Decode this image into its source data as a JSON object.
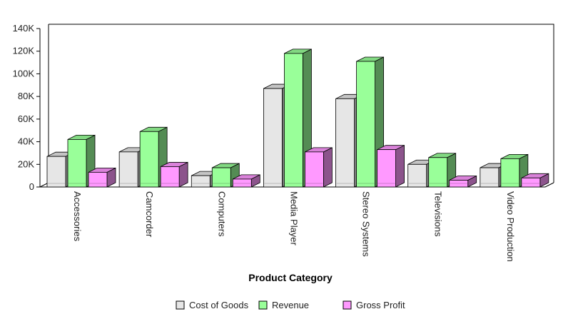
{
  "chart_data": {
    "type": "bar",
    "title": "",
    "xlabel": "Product Category",
    "ylabel": "",
    "ylim": [
      0,
      140000
    ],
    "yticks": [
      {
        "value": 0,
        "label": "0"
      },
      {
        "value": 20000,
        "label": "20K"
      },
      {
        "value": 40000,
        "label": "40K"
      },
      {
        "value": 60000,
        "label": "60K"
      },
      {
        "value": 80000,
        "label": "80K"
      },
      {
        "value": 100000,
        "label": "100K"
      },
      {
        "value": 120000,
        "label": "120K"
      },
      {
        "value": 140000,
        "label": "140K"
      }
    ],
    "categories": [
      "Accessories",
      "Camcorder",
      "Computers",
      "Media Player",
      "Stereo Systems",
      "Televisions",
      "Video Production"
    ],
    "series": [
      {
        "name": "Cost of Goods",
        "color": "#e6e6e6",
        "values": [
          27000,
          31000,
          10000,
          87000,
          78000,
          20000,
          17000
        ]
      },
      {
        "name": "Revenue",
        "color": "#99ff99",
        "values": [
          42000,
          49000,
          17000,
          118000,
          111000,
          26000,
          25000
        ]
      },
      {
        "name": "Gross Profit",
        "color": "#ff99ff",
        "values": [
          13000,
          18000,
          7000,
          31000,
          33000,
          6000,
          8000
        ]
      }
    ],
    "grid": false,
    "style": "3d-clustered-columns",
    "legend_position": "bottom"
  }
}
